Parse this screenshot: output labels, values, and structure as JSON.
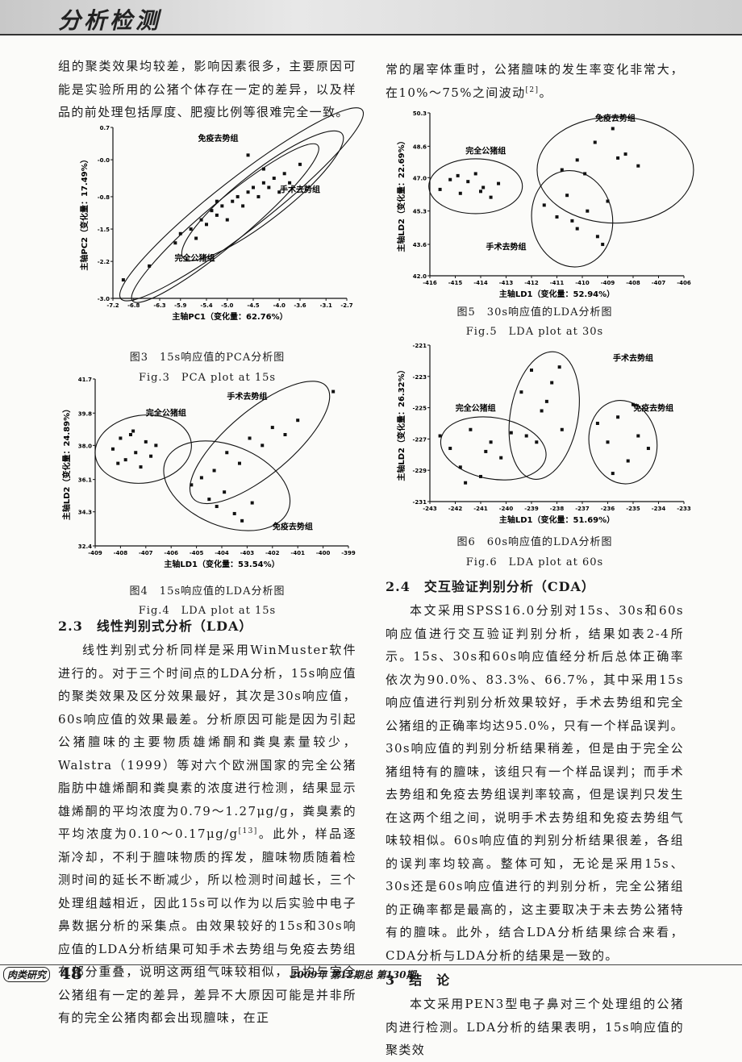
{
  "header": {
    "section": "分析检测"
  },
  "intro_left": "组的聚类效果均较差，影响因素很多，主要原因可能是实验所用的公猪个体存在一定的差异，以及样品的前处理包括厚度、肥瘦比例等很难完全一致。",
  "intro_right": {
    "before": "常的屠宰体重时，公猪膻味的发生率变化非常大，在10%～75%之间波动",
    "ref": "[2]",
    "after": "。"
  },
  "figures": [
    {
      "type": "scatter",
      "caption": "图3　15s响应值的PCA分析图",
      "caption_en": "Fig.3　PCA plot at 15s",
      "xlabel": "主轴PC1（变化量：62.76%）",
      "ylabel": "主轴PC2（变化量：17.49%）",
      "xlim": [
        -7.2,
        -2.7
      ],
      "ylim": [
        -3.0,
        0.7
      ],
      "xticks": [
        -7.2,
        -6.8,
        -6.3,
        -5.9,
        -5.4,
        {
          "value": -5.0,
          "label": "-5.0"
        },
        -4.5,
        {
          "value": -4.0,
          "label": "-4.0"
        },
        -3.6,
        -3.1,
        -2.7
      ],
      "yticks": [
        {
          "value": -3.0,
          "label": "-3.0"
        },
        -2.2,
        -1.5,
        -0.8,
        {
          "value": 0,
          "label": "-0.0"
        },
        0.7
      ],
      "groups": [
        "免疫去势组",
        "手术去势组",
        "完全公猪组"
      ],
      "x": [
        -7.0,
        -6.5,
        -6.0,
        -5.9,
        -5.7,
        -5.6,
        -5.5,
        -5.4,
        -5.3,
        -5.2,
        -5.1,
        -5.0,
        -4.9,
        -4.8,
        -4.7,
        -4.6,
        -4.5,
        -4.4,
        -4.3,
        -4.2,
        -4.1,
        -4.0,
        -3.9,
        -3.8,
        -3.6,
        -4.6,
        -5.2,
        -4.3
      ],
      "y": [
        -2.6,
        -2.3,
        -1.8,
        -1.6,
        -1.5,
        -1.7,
        -1.3,
        -1.4,
        -1.1,
        -1.2,
        -1.0,
        -1.3,
        -0.9,
        -0.8,
        -1.0,
        -0.7,
        -0.6,
        -0.8,
        -0.5,
        -0.6,
        -0.4,
        -0.7,
        -0.3,
        -0.5,
        -0.1,
        0.1,
        -0.9,
        -0.2
      ]
    },
    {
      "type": "scatter",
      "caption": "图4　15s响应值的LDA分析图",
      "caption_en": "Fig.4　LDA plot at 15s",
      "xlabel": "主轴LD1（变化量：53.54%）",
      "ylabel": "主轴LD2（变化量：24.89%）",
      "xlim": [
        -409,
        -399
      ],
      "ylim": [
        32.4,
        41.7
      ],
      "xticks": [
        -409,
        -408,
        -407,
        -406,
        -405,
        -404,
        -403,
        -402,
        -401,
        -400,
        -399
      ],
      "yticks": [
        32.4,
        34.3,
        36.1,
        {
          "value": 38.0,
          "label": "38.0"
        },
        39.8,
        41.7
      ],
      "groups": [
        "完全公猪组",
        "手术去势组",
        "免疫去势组"
      ],
      "x": [
        -408.3,
        -408.0,
        -407.8,
        -407.6,
        -407.4,
        -407.2,
        -407.0,
        -406.8,
        -406.6,
        -408.1,
        -407.5,
        -405.2,
        -404.8,
        -404.5,
        -404.2,
        -403.9,
        -403.5,
        -403.2,
        -402.8,
        -404.3,
        -403.8,
        -403.3,
        -402.9,
        -402.4,
        -402.0,
        -401.5,
        -401.0,
        -399.6
      ],
      "y": [
        37.8,
        38.4,
        37.2,
        38.6,
        37.6,
        36.8,
        38.2,
        37.4,
        38.0,
        37.0,
        38.8,
        35.8,
        36.2,
        35.0,
        34.6,
        35.4,
        34.2,
        33.8,
        34.8,
        36.6,
        37.6,
        37.0,
        38.4,
        38.0,
        39.0,
        38.6,
        39.4,
        41.0
      ]
    },
    {
      "type": "scatter",
      "caption": "图5　30s响应值的LDA分析图",
      "caption_en": "Fig.5　LDA plot at 30s",
      "xlabel": "主轴LD1（变化量：52.94%）",
      "ylabel": "主轴LD2（变化量：22.69%）",
      "xlim": [
        -416,
        -406
      ],
      "ylim": [
        42.0,
        50.3
      ],
      "xticks": [
        -416,
        -415,
        -414,
        -413,
        -412,
        -411,
        -410,
        -409,
        -408,
        -407,
        -406
      ],
      "yticks": [
        {
          "value": 42.0,
          "label": "42.0"
        },
        43.6,
        45.3,
        {
          "value": 47.0,
          "label": "47.0"
        },
        48.6,
        50.3
      ],
      "groups": [
        "免疫去势组",
        "完全公猪组",
        "手术去势组"
      ],
      "x": [
        -415.6,
        -415.2,
        -414.8,
        -414.5,
        -414.2,
        -413.9,
        -413.6,
        -413.3,
        -414.9,
        -414.0,
        -410.8,
        -410.2,
        -409.5,
        -408.8,
        -408.3,
        -407.8,
        -409.9,
        -408.6,
        -411.5,
        -411.0,
        -410.6,
        -410.2,
        -409.8,
        -409.4,
        -409.0,
        -410.4,
        -409.2
      ],
      "y": [
        46.4,
        46.9,
        46.2,
        46.8,
        47.2,
        46.5,
        46.0,
        46.7,
        47.1,
        46.3,
        47.4,
        47.9,
        48.8,
        49.5,
        48.2,
        47.6,
        47.2,
        48.0,
        45.6,
        45.0,
        46.1,
        44.4,
        45.3,
        44.0,
        45.8,
        44.8,
        43.6
      ]
    },
    {
      "type": "scatter",
      "caption": "图6　60s响应值的LDA分析图",
      "caption_en": "Fig.6　LDA plot at 60s",
      "xlabel": "主轴LD1（变化量：51.69%）",
      "ylabel": "主轴LD2（变化量：26.32%）",
      "xlim": [
        -243,
        -233
      ],
      "ylim": [
        -231,
        -221
      ],
      "xticks": [
        -243,
        -242,
        -241,
        -240,
        -239,
        -238,
        -237,
        -236,
        -235,
        -234,
        -233
      ],
      "yticks": [
        -231,
        -229,
        -227,
        -225,
        -223,
        -221
      ],
      "groups": [
        "手术去势组",
        "完全公猪组",
        "免疫去势组"
      ],
      "x": [
        -242.6,
        -242.2,
        -241.8,
        -241.4,
        -241.0,
        -240.6,
        -240.2,
        -239.8,
        -241.6,
        -240.8,
        -239.4,
        -239.0,
        -238.6,
        -238.2,
        -237.8,
        -239.2,
        -238.4,
        -237.9,
        -238.8,
        -236.4,
        -236.0,
        -235.6,
        -235.2,
        -234.8,
        -234.4,
        -235.8,
        -235.0
      ],
      "y": [
        -226.8,
        -227.6,
        -228.8,
        -226.4,
        -229.4,
        -227.2,
        -228.2,
        -226.6,
        -229.8,
        -227.8,
        -224.0,
        -222.6,
        -225.2,
        -223.4,
        -226.4,
        -226.8,
        -224.6,
        -222.4,
        -227.2,
        -226.0,
        -227.2,
        -225.6,
        -228.4,
        -226.8,
        -227.6,
        -229.2,
        -224.8
      ]
    }
  ],
  "section_23": {
    "heading": "2.3　线性判别式分析（LDA）",
    "paragraph": {
      "before": "线性判别式分析同样是采用WinMuster软件进行的。对于三个时间点的LDA分析，15s响应值的聚类效果及区分效果最好，其次是30s响应值，60s响应值的效果最差。分析原因可能是因为引起公猪膻味的主要物质雄烯酮和粪臭素量较少，Walstra（1999）等对六个欧洲国家的完全公猪脂肪中雄烯酮和粪臭素的浓度进行检测，结果显示雄烯酮的平均浓度为0.79～1.27μg/g，粪臭素的平均浓度为0.10～0.17μg/g",
      "ref": "[13]",
      "after": "。此外，样品逐渐冷却，不利于膻味物质的挥发，膻味物质随着检测时间的延长不断减少，所以检测时间越长，三个处理组越相近，因此15s可以作为以后实验中电子鼻数据分析的采集点。由效果较好的15s和30s响应值的LDA分析结果可知手术去势组与免疫去势组有部分重叠，说明这两组气味较相似，且均与完全公猪组有一定的差异，差异不大原因可能是并非所有的完全公猪肉都会出现膻味，在正"
    }
  },
  "section_24": {
    "heading": "2.4　交互验证判别分析（CDA）",
    "paragraph": "本文采用SPSS16.0分别对15s、30s和60s响应值进行交互验证判别分析，结果如表2-4所示。15s、30s和60s响应值经分析后总体正确率依次为90.0%、83.3%、66.7%，其中采用15s响应值进行判别分析效果较好，手术去势组和完全公猪组的正确率均达95.0%，只有一个样品误判。30s响应值的判别分析结果稍差，但是由于完全公猪组特有的膻味，该组只有一个样品误判；而手术去势组和免疫去势组误判率较高，但是误判只发生在这两个组之间，说明手术去势组和免疫去势组气味较相似。60s响应值的判别分析结果很差，各组的误判率均较高。整体可知，无论是采用15s、30s还是60s响应值进行的判别分析，完全公猪组的正确率都是最高的，这主要取决于未去势公猪特有的膻味。此外，结合LDA分析结果综合来看，CDA分析与LDA分析的结果是一致的。"
  },
  "section_3": {
    "heading": "3　结　论",
    "paragraph": "本文采用PEN3型电子鼻对三个处理组的公猪肉进行检测。LDA分析的结果表明，15s响应值的聚类效"
  },
  "footer": {
    "journal": "肉类研究",
    "page": "48",
    "issue": "2009年 第12期总 第130期"
  }
}
